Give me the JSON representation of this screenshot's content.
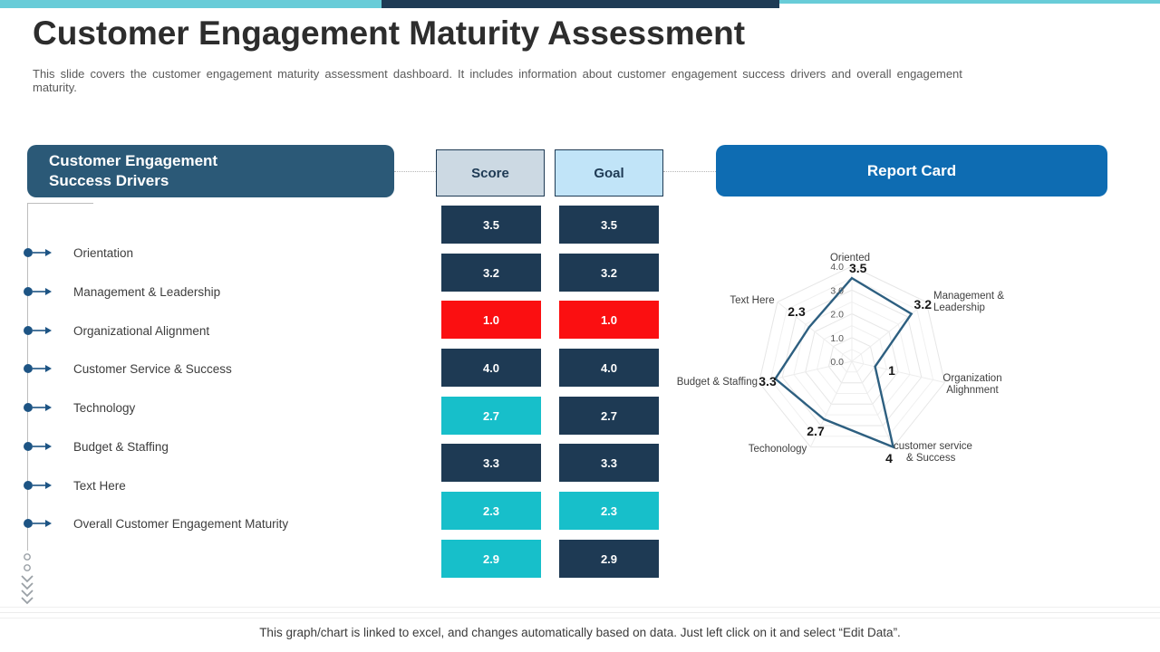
{
  "colors": {
    "navy": "#1e3a54",
    "teal": "#17bfca",
    "red": "#fb0f11",
    "accent_teal": "#68ccd8",
    "accent_navy": "#1e3b55",
    "left_header_bg": "#2b5977",
    "report_header_bg": "#0e6cb2",
    "score_header_bg": "#ccd9e3",
    "goal_header_bg": "#c1e4f8",
    "radar_line": "#2d5f80",
    "bullet": "#1d5484"
  },
  "slide": {
    "title": "Customer Engagement Maturity Assessment",
    "subtitle": "This slide covers the customer engagement maturity assessment dashboard. It includes information about customer engagement success drivers and overall engagement maturity.",
    "footer": "This graph/chart is linked to excel, and changes automatically based on data. Just left click on it and select “Edit Data”."
  },
  "drivers_panel": {
    "header_line1": "Customer Engagement",
    "header_line2": "Success Drivers",
    "items": [
      "Orientation",
      "Management & Leadership",
      "Organizational Alignment",
      "Customer Service & Success",
      "Technology",
      "Budget & Staffing",
      "Text Here",
      "Overall Customer Engagement Maturity"
    ]
  },
  "table": {
    "headers": {
      "score": "Score",
      "goal": "Goal"
    },
    "rows": [
      {
        "score": "3.5",
        "goal": "3.5",
        "score_style": "navy",
        "goal_style": "navy"
      },
      {
        "score": "3.2",
        "goal": "3.2",
        "score_style": "navy",
        "goal_style": "navy"
      },
      {
        "score": "1.0",
        "goal": "1.0",
        "score_style": "red",
        "goal_style": "red"
      },
      {
        "score": "4.0",
        "goal": "4.0",
        "score_style": "navy",
        "goal_style": "navy"
      },
      {
        "score": "2.7",
        "goal": "2.7",
        "score_style": "teal",
        "goal_style": "navy"
      },
      {
        "score": "3.3",
        "goal": "3.3",
        "score_style": "navy",
        "goal_style": "navy"
      },
      {
        "score": "2.3",
        "goal": "2.3",
        "score_style": "teal",
        "goal_style": "teal"
      },
      {
        "score": "2.9",
        "goal": "2.9",
        "score_style": "teal",
        "goal_style": "navy"
      }
    ]
  },
  "report_card": {
    "header": "Report Card"
  },
  "chart_data": {
    "type": "radar",
    "title": "Report Card",
    "categories": [
      "Oriented",
      "Management & Leadership",
      "Organization Alighnment",
      "customer service & Success",
      "Techonology",
      "Budget & Staffing",
      "Text Here"
    ],
    "values": [
      3.5,
      3.2,
      1,
      4,
      2.7,
      3.3,
      2.3
    ],
    "value_labels": [
      "3.5",
      "3.2",
      "1",
      "4",
      "2.7",
      "3.3",
      "2.3"
    ],
    "axis_range": [
      0,
      4
    ],
    "ring_step": 0.5,
    "tick_labels": [
      "0.0",
      "1.0",
      "2.0",
      "3.0",
      "4.0"
    ],
    "grid": true,
    "legend": false
  }
}
